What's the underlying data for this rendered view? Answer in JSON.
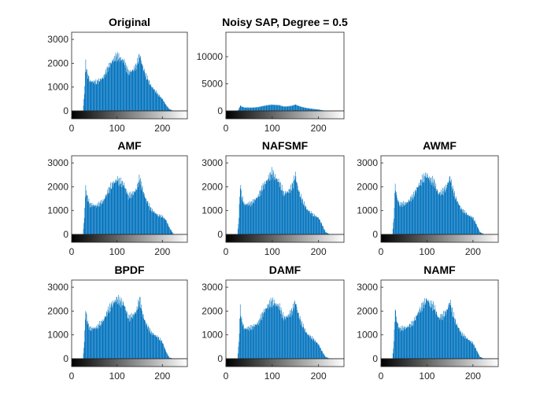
{
  "chart_data": [
    {
      "type": "bar",
      "title": "Original",
      "xlim": [
        0,
        255
      ],
      "ylim": [
        0,
        3300
      ],
      "xticks": [
        0,
        100,
        200
      ],
      "yticks": [
        0,
        1000,
        2000,
        3000
      ],
      "colorbar": "grayscale",
      "series": [
        {
          "x": [
            0,
            25,
            28,
            31,
            34,
            40,
            55,
            70,
            80,
            90,
            100,
            106,
            115,
            125,
            135,
            143,
            150,
            156,
            163,
            175,
            190,
            200,
            208,
            215,
            225,
            255
          ],
          "values": [
            0,
            0,
            700,
            2000,
            1600,
            1250,
            1200,
            1400,
            1800,
            2100,
            2300,
            2200,
            2100,
            1600,
            1700,
            1900,
            2350,
            1900,
            1500,
            1050,
            700,
            500,
            250,
            80,
            0,
            0
          ]
        }
      ]
    },
    {
      "type": "bar",
      "title": "Noisy SAP, Degree = 0.5",
      "xlim": [
        0,
        255
      ],
      "ylim": [
        0,
        14500
      ],
      "xticks": [
        0,
        100,
        200
      ],
      "yticks": [
        0,
        5000,
        10000
      ],
      "colorbar": "grayscale",
      "series": [
        {
          "x": [
            0,
            25,
            28,
            31,
            34,
            40,
            55,
            70,
            80,
            90,
            100,
            106,
            115,
            125,
            135,
            143,
            150,
            156,
            163,
            175,
            190,
            200,
            208,
            215,
            225,
            255
          ],
          "values": [
            0,
            0,
            350,
            1000,
            800,
            625,
            600,
            700,
            900,
            1050,
            1150,
            1100,
            1050,
            800,
            850,
            950,
            1175,
            950,
            750,
            525,
            350,
            250,
            125,
            40,
            0,
            0
          ]
        }
      ]
    },
    {
      "type": "bar",
      "title": "AMF",
      "xlim": [
        0,
        255
      ],
      "ylim": [
        0,
        3300
      ],
      "xticks": [
        0,
        100,
        200
      ],
      "yticks": [
        0,
        1000,
        2000,
        3000
      ],
      "colorbar": "grayscale",
      "series": [
        {
          "x": [
            0,
            25,
            28,
            31,
            34,
            40,
            55,
            70,
            80,
            90,
            100,
            106,
            115,
            125,
            135,
            143,
            150,
            156,
            163,
            175,
            190,
            200,
            208,
            215,
            225,
            255
          ],
          "values": [
            0,
            0,
            700,
            2000,
            1600,
            1250,
            1200,
            1400,
            1800,
            2100,
            2300,
            2200,
            2100,
            1600,
            1700,
            1900,
            2350,
            1900,
            1500,
            1050,
            800,
            750,
            600,
            300,
            0,
            0
          ]
        }
      ]
    },
    {
      "type": "bar",
      "title": "NAFSMF",
      "xlim": [
        0,
        255
      ],
      "ylim": [
        0,
        3300
      ],
      "xticks": [
        0,
        100,
        200
      ],
      "yticks": [
        0,
        1000,
        2000,
        3000
      ],
      "colorbar": "grayscale",
      "series": [
        {
          "x": [
            0,
            25,
            28,
            31,
            34,
            40,
            55,
            70,
            80,
            90,
            100,
            106,
            115,
            125,
            135,
            143,
            150,
            156,
            163,
            175,
            190,
            200,
            208,
            215,
            225,
            255
          ],
          "values": [
            0,
            0,
            700,
            2100,
            1600,
            1250,
            1300,
            1600,
            2000,
            2300,
            2600,
            2400,
            2200,
            1700,
            1800,
            2000,
            2500,
            1900,
            1500,
            1050,
            800,
            700,
            400,
            100,
            0,
            0
          ]
        }
      ]
    },
    {
      "type": "bar",
      "title": "AWMF",
      "xlim": [
        0,
        255
      ],
      "ylim": [
        0,
        3300
      ],
      "xticks": [
        0,
        100,
        200
      ],
      "yticks": [
        0,
        1000,
        2000,
        3000
      ],
      "colorbar": "grayscale",
      "series": [
        {
          "x": [
            0,
            25,
            28,
            31,
            34,
            40,
            55,
            70,
            80,
            90,
            100,
            106,
            115,
            125,
            135,
            143,
            150,
            156,
            163,
            175,
            190,
            200,
            208,
            215,
            225,
            255
          ],
          "values": [
            0,
            0,
            700,
            2100,
            1600,
            1250,
            1300,
            1600,
            2000,
            2300,
            2500,
            2300,
            2200,
            1700,
            1800,
            2000,
            2400,
            1900,
            1500,
            1050,
            800,
            700,
            400,
            100,
            0,
            0
          ]
        }
      ]
    },
    {
      "type": "bar",
      "title": "BPDF",
      "xlim": [
        0,
        255
      ],
      "ylim": [
        0,
        3300
      ],
      "xticks": [
        0,
        100,
        200
      ],
      "yticks": [
        0,
        1000,
        2000,
        3000
      ],
      "colorbar": "grayscale",
      "series": [
        {
          "x": [
            0,
            25,
            28,
            31,
            34,
            40,
            55,
            70,
            80,
            90,
            100,
            106,
            115,
            125,
            135,
            143,
            150,
            156,
            163,
            175,
            190,
            200,
            208,
            215,
            225,
            255
          ],
          "values": [
            0,
            0,
            700,
            2100,
            1600,
            1250,
            1300,
            1600,
            2000,
            2300,
            2500,
            2400,
            2300,
            1700,
            1800,
            2000,
            2500,
            1900,
            1500,
            1100,
            900,
            700,
            300,
            50,
            0,
            0
          ]
        }
      ]
    },
    {
      "type": "bar",
      "title": "DAMF",
      "xlim": [
        0,
        255
      ],
      "ylim": [
        0,
        3300
      ],
      "xticks": [
        0,
        100,
        200
      ],
      "yticks": [
        0,
        1000,
        2000,
        3000
      ],
      "colorbar": "grayscale",
      "series": [
        {
          "x": [
            0,
            25,
            28,
            31,
            34,
            40,
            55,
            70,
            80,
            90,
            100,
            106,
            115,
            125,
            135,
            143,
            150,
            156,
            163,
            175,
            190,
            200,
            208,
            215,
            225,
            255
          ],
          "values": [
            0,
            0,
            700,
            2100,
            1600,
            1250,
            1300,
            1500,
            1900,
            2200,
            2400,
            2300,
            2200,
            1700,
            1800,
            2000,
            2400,
            1900,
            1500,
            1050,
            800,
            600,
            300,
            80,
            0,
            0
          ]
        }
      ]
    },
    {
      "type": "bar",
      "title": "NAMF",
      "xlim": [
        0,
        255
      ],
      "ylim": [
        0,
        3300
      ],
      "xticks": [
        0,
        100,
        200
      ],
      "yticks": [
        0,
        1000,
        2000,
        3000
      ],
      "colorbar": "grayscale",
      "series": [
        {
          "x": [
            0,
            25,
            28,
            31,
            34,
            40,
            55,
            70,
            80,
            90,
            100,
            106,
            115,
            125,
            135,
            143,
            150,
            156,
            163,
            175,
            190,
            200,
            208,
            215,
            225,
            255
          ],
          "values": [
            0,
            0,
            700,
            2100,
            1600,
            1250,
            1300,
            1500,
            1900,
            2200,
            2500,
            2300,
            2200,
            1700,
            1800,
            2000,
            2400,
            1900,
            1500,
            1050,
            800,
            650,
            350,
            80,
            0,
            0
          ]
        }
      ]
    }
  ],
  "colors": {
    "bar": "#0072BD",
    "axis": "#262626",
    "background": "#ffffff"
  }
}
